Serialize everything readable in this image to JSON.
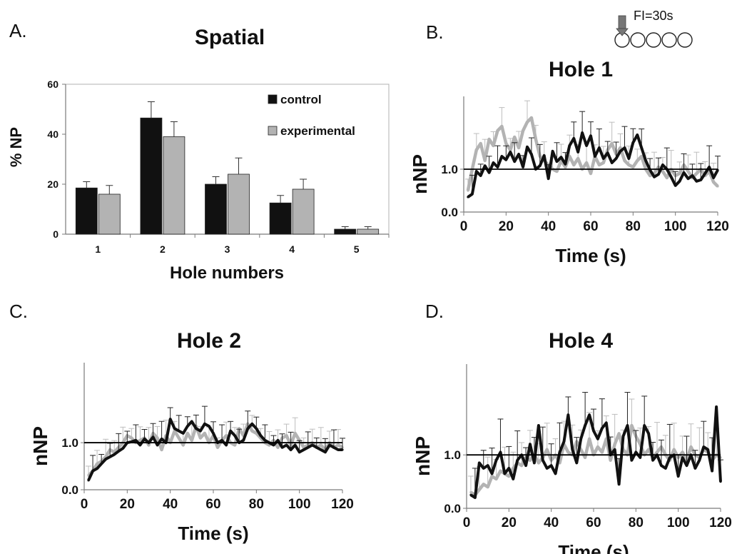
{
  "panels": {
    "a": {
      "letter": "A.",
      "title": "Spatial"
    },
    "b": {
      "letter": "B.",
      "title": "Hole 1"
    },
    "c": {
      "letter": "C.",
      "title": "Hole 2"
    },
    "d": {
      "letter": "D.",
      "title": "Hole 4"
    }
  },
  "inset": {
    "label": "FI=30s",
    "holes": 5,
    "arrow_hole": 1
  },
  "colors": {
    "control": "#111111",
    "experimental": "#b3b3b3",
    "error_bar": "#222222",
    "error_bar_light": "#bdbdbd",
    "axis": "#7a7a7a",
    "reference_line": "#000000"
  },
  "chart_data": [
    {
      "id": "spatial",
      "type": "bar",
      "title": "Spatial",
      "xlabel": "Hole numbers",
      "ylabel": "% NP",
      "categories": [
        "1",
        "2",
        "3",
        "4",
        "5"
      ],
      "ylim": [
        0,
        60
      ],
      "yticks": [
        "0",
        "20",
        "40",
        "60"
      ],
      "legend": "top-right",
      "grid": false,
      "series": [
        {
          "name": "control",
          "values": [
            18.5,
            46.5,
            20,
            12.5,
            2
          ],
          "errors": [
            2.5,
            6.5,
            3,
            3,
            1
          ]
        },
        {
          "name": "experimental",
          "values": [
            16,
            39,
            24,
            18,
            2
          ],
          "errors": [
            3.5,
            6,
            6.5,
            4,
            1
          ]
        }
      ]
    },
    {
      "id": "hole1",
      "type": "line",
      "title": "Hole 1",
      "xlabel": "Time (s)",
      "ylabel": "nNP",
      "xlim": [
        0,
        120
      ],
      "ylim": [
        0,
        2.7
      ],
      "xticks": [
        "0",
        "20",
        "40",
        "60",
        "80",
        "100",
        "120"
      ],
      "yticks": [
        "0.0",
        "1.0"
      ],
      "reference_y": 1.0,
      "grid": false,
      "x": [
        2,
        4,
        6,
        8,
        10,
        12,
        14,
        16,
        18,
        20,
        22,
        24,
        26,
        28,
        30,
        32,
        34,
        36,
        38,
        40,
        42,
        44,
        46,
        48,
        50,
        52,
        54,
        56,
        58,
        60,
        62,
        64,
        66,
        68,
        70,
        72,
        74,
        76,
        78,
        80,
        82,
        84,
        86,
        88,
        90,
        92,
        94,
        96,
        98,
        100,
        102,
        104,
        106,
        108,
        110,
        112,
        114,
        116,
        118,
        120
      ],
      "series": [
        {
          "name": "control",
          "values": [
            0.35,
            0.42,
            0.95,
            0.85,
            1.08,
            0.92,
            1.15,
            1.05,
            1.3,
            1.22,
            1.4,
            1.18,
            1.35,
            1.05,
            1.52,
            1.35,
            1.0,
            1.08,
            1.32,
            0.78,
            1.42,
            1.18,
            1.28,
            1.12,
            1.55,
            1.72,
            1.4,
            1.85,
            1.55,
            1.78,
            1.3,
            1.5,
            1.25,
            1.38,
            1.15,
            1.25,
            1.42,
            1.5,
            1.25,
            1.62,
            1.8,
            1.5,
            1.2,
            0.98,
            0.82,
            0.88,
            1.1,
            1.0,
            0.82,
            0.62,
            0.72,
            0.92,
            0.78,
            0.85,
            0.72,
            0.75,
            0.9,
            1.05,
            0.8,
            0.98
          ],
          "error": 0.4
        },
        {
          "name": "experimental",
          "values": [
            0.5,
            1.0,
            1.45,
            1.6,
            1.2,
            1.7,
            1.55,
            1.9,
            2.0,
            1.6,
            1.45,
            1.75,
            1.5,
            1.9,
            2.1,
            2.2,
            1.7,
            1.3,
            1.2,
            1.1,
            1.0,
            0.95,
            1.2,
            1.05,
            1.3,
            1.1,
            1.25,
            1.0,
            1.15,
            0.9,
            1.3,
            1.1,
            1.15,
            1.45,
            1.6,
            1.35,
            1.5,
            1.2,
            1.1,
            1.05,
            1.2,
            1.3,
            1.0,
            0.85,
            0.9,
            1.05,
            0.95,
            0.8,
            1.0,
            0.85,
            0.9,
            1.1,
            0.95,
            0.8,
            0.9,
            1.0,
            0.85,
            0.95,
            0.7,
            0.6
          ],
          "error": 0.4
        }
      ]
    },
    {
      "id": "hole2",
      "type": "line",
      "title": "Hole 2",
      "xlabel": "Time (s)",
      "ylabel": "nNP",
      "xlim": [
        0,
        120
      ],
      "ylim": [
        0,
        2.7
      ],
      "xticks": [
        "0",
        "20",
        "40",
        "60",
        "80",
        "100",
        "120"
      ],
      "yticks": [
        "0.0",
        "1.0"
      ],
      "reference_y": 1.0,
      "grid": false,
      "x": [
        2,
        4,
        6,
        8,
        10,
        12,
        14,
        16,
        18,
        20,
        22,
        24,
        26,
        28,
        30,
        32,
        34,
        36,
        38,
        40,
        42,
        44,
        46,
        48,
        50,
        52,
        54,
        56,
        58,
        60,
        62,
        64,
        66,
        68,
        70,
        72,
        74,
        76,
        78,
        80,
        82,
        84,
        86,
        88,
        90,
        92,
        94,
        96,
        98,
        100,
        102,
        104,
        106,
        108,
        110,
        112,
        114,
        116,
        118,
        120
      ],
      "series": [
        {
          "name": "control",
          "values": [
            0.2,
            0.4,
            0.45,
            0.55,
            0.65,
            0.7,
            0.75,
            0.82,
            0.88,
            1.0,
            1.02,
            1.05,
            0.95,
            1.08,
            1.0,
            1.12,
            0.95,
            1.08,
            1.0,
            1.5,
            1.3,
            1.25,
            1.2,
            1.35,
            1.45,
            1.3,
            1.25,
            1.4,
            1.35,
            1.2,
            1.0,
            1.05,
            0.95,
            1.25,
            1.15,
            1.0,
            1.05,
            1.3,
            1.4,
            1.3,
            1.15,
            1.05,
            1.0,
            0.95,
            1.05,
            0.9,
            0.95,
            0.85,
            0.95,
            0.8,
            0.85,
            0.9,
            0.95,
            0.9,
            0.85,
            0.8,
            0.95,
            0.9,
            0.85,
            0.85
          ],
          "error": 0.3
        },
        {
          "name": "experimental",
          "values": [
            0.3,
            0.4,
            0.55,
            0.6,
            0.7,
            0.85,
            0.8,
            0.9,
            1.0,
            1.15,
            1.1,
            1.0,
            1.05,
            1.1,
            0.95,
            1.2,
            1.1,
            0.85,
            1.15,
            1.0,
            1.25,
            1.1,
            0.95,
            1.2,
            1.05,
            1.35,
            1.1,
            1.2,
            1.0,
            1.15,
            0.9,
            1.05,
            1.15,
            1.0,
            0.95,
            1.3,
            1.15,
            1.4,
            1.25,
            1.2,
            1.1,
            1.0,
            0.95,
            1.05,
            0.9,
            1.1,
            1.15,
            0.95,
            1.2,
            1.05,
            0.9,
            0.95,
            1.0,
            0.9,
            0.95,
            0.85,
            1.0,
            0.9,
            0.95,
            0.9
          ],
          "error": 0.3
        }
      ]
    },
    {
      "id": "hole4",
      "type": "line",
      "title": "Hole 4",
      "xlabel": "Time (s)",
      "ylabel": "nNP",
      "xlim": [
        0,
        120
      ],
      "ylim": [
        0,
        2.7
      ],
      "xticks": [
        "0",
        "20",
        "40",
        "60",
        "80",
        "100",
        "120"
      ],
      "yticks": [
        "0.0",
        "1.0"
      ],
      "reference_y": 1.0,
      "grid": false,
      "x": [
        2,
        4,
        6,
        8,
        10,
        12,
        14,
        16,
        18,
        20,
        22,
        24,
        26,
        28,
        30,
        32,
        34,
        36,
        38,
        40,
        42,
        44,
        46,
        48,
        50,
        52,
        54,
        56,
        58,
        60,
        62,
        64,
        66,
        68,
        70,
        72,
        74,
        76,
        78,
        80,
        82,
        84,
        86,
        88,
        90,
        92,
        94,
        96,
        98,
        100,
        102,
        104,
        106,
        108,
        110,
        112,
        114,
        116,
        118,
        120
      ],
      "series": [
        {
          "name": "control",
          "values": [
            0.25,
            0.2,
            0.85,
            0.75,
            0.8,
            0.65,
            0.9,
            1.05,
            0.65,
            0.75,
            0.55,
            0.9,
            1.0,
            0.8,
            1.2,
            0.85,
            1.55,
            0.9,
            0.75,
            0.8,
            0.65,
            1.05,
            1.25,
            1.75,
            1.1,
            0.85,
            1.3,
            1.55,
            1.75,
            1.45,
            1.3,
            1.5,
            1.6,
            1.0,
            1.1,
            0.45,
            1.35,
            1.55,
            0.9,
            1.05,
            0.95,
            1.55,
            1.4,
            0.9,
            1.0,
            0.8,
            0.75,
            0.95,
            1.0,
            0.6,
            0.95,
            0.8,
            1.0,
            0.75,
            0.9,
            1.15,
            1.1,
            0.7,
            1.9,
            0.5
          ],
          "error": 0.5
        },
        {
          "name": "experimental",
          "values": [
            0.3,
            0.25,
            0.35,
            0.45,
            0.4,
            0.6,
            0.55,
            0.7,
            0.65,
            0.6,
            0.75,
            0.85,
            0.8,
            0.95,
            0.9,
            1.0,
            0.85,
            0.95,
            1.1,
            0.9,
            1.0,
            0.85,
            1.2,
            1.05,
            1.0,
            1.25,
            1.1,
            0.95,
            1.3,
            1.0,
            1.15,
            1.05,
            1.3,
            0.9,
            1.2,
            1.4,
            1.1,
            1.0,
            1.55,
            1.35,
            1.2,
            1.0,
            1.1,
            0.95,
            1.05,
            1.15,
            1.0,
            0.9,
            1.1,
            0.95,
            1.05,
            0.9,
            1.15,
            1.0,
            0.95,
            1.1,
            1.05,
            0.9,
            1.0,
            0.95
          ],
          "error": 0.45
        }
      ]
    }
  ]
}
